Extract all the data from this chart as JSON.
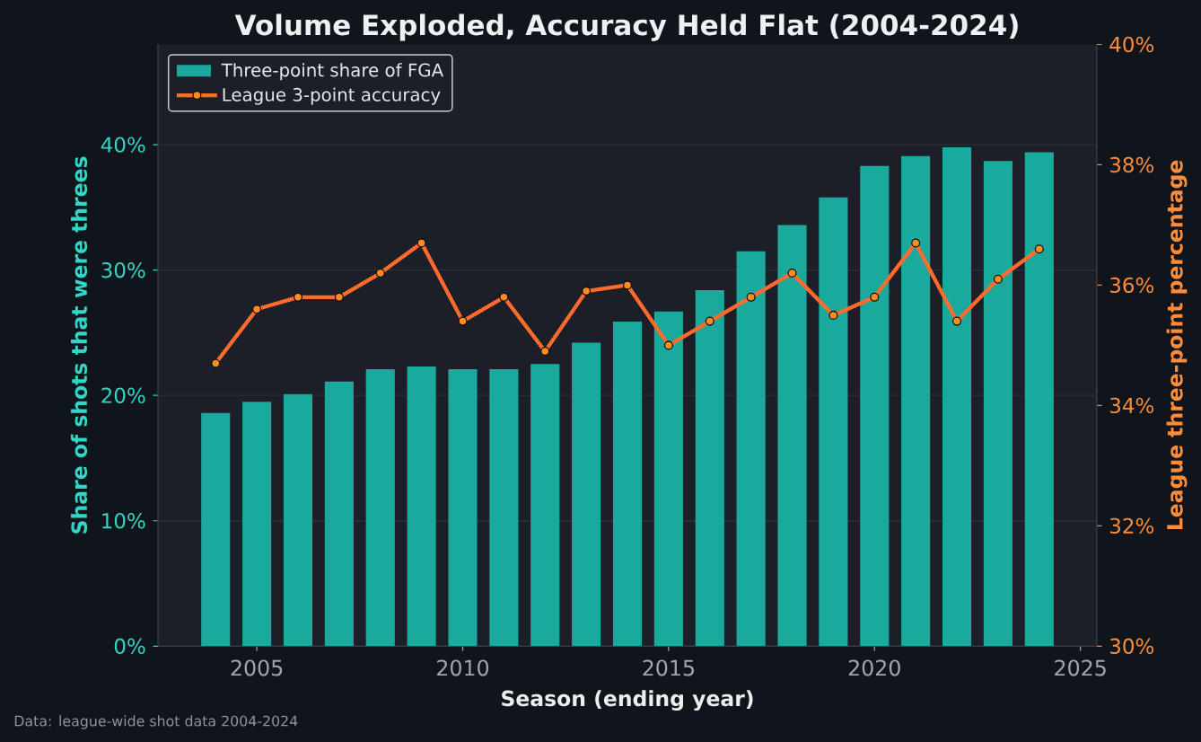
{
  "chart_data": {
    "type": "bar",
    "title": "Volume Exploded, Accuracy Held Flat (2004-2024)",
    "xlabel": "Season (ending year)",
    "ylabel": "Share of shots that were threes",
    "y2label": "League three-point percentage",
    "annotations": [
      "Data: league-wide shot data 2004-2024"
    ],
    "x": [
      2004,
      2005,
      2006,
      2007,
      2008,
      2009,
      2010,
      2011,
      2012,
      2013,
      2014,
      2015,
      2016,
      2017,
      2018,
      2019,
      2020,
      2021,
      2022,
      2023,
      2024
    ],
    "series": [
      {
        "name": "Three-point share of FGA",
        "color": "#1aaa9d",
        "values": [
          18.6,
          19.5,
          20.1,
          21.1,
          22.1,
          22.3,
          22.1,
          22.1,
          22.5,
          24.2,
          25.9,
          26.7,
          28.4,
          31.5,
          33.6,
          35.8,
          38.3,
          39.1,
          39.8,
          38.7,
          39.4
        ]
      },
      {
        "name": "League 3-point accuracy",
        "type": "line",
        "axis": "y2",
        "color": "#ff6b2c",
        "marker": "circle",
        "line_style": "solid",
        "values": [
          34.7,
          35.6,
          35.8,
          35.8,
          36.2,
          36.7,
          35.4,
          35.8,
          34.9,
          35.9,
          36.0,
          35.0,
          35.4,
          35.8,
          36.2,
          35.5,
          35.8,
          36.7,
          35.4,
          36.1,
          36.6
        ]
      }
    ],
    "xlim": [
      2002.6,
      2025.4
    ],
    "xticks": [
      2005,
      2010,
      2015,
      2020,
      2025
    ],
    "ylim": [
      0,
      48
    ],
    "yticks": [
      {
        "value": 0,
        "label": "0%"
      },
      {
        "value": 10,
        "label": "10%"
      },
      {
        "value": 20,
        "label": "20%"
      },
      {
        "value": 30,
        "label": "30%"
      },
      {
        "value": 40,
        "label": "40%"
      }
    ],
    "y2lim": [
      30,
      40
    ],
    "y2ticks": [
      {
        "value": 30,
        "label": "30%"
      },
      {
        "value": 32,
        "label": "32%"
      },
      {
        "value": 34,
        "label": "34%"
      },
      {
        "value": 36,
        "label": "36%"
      },
      {
        "value": 38,
        "label": "38%"
      },
      {
        "value": 40,
        "label": "40%"
      }
    ],
    "grid": "y",
    "legend": "top left"
  }
}
